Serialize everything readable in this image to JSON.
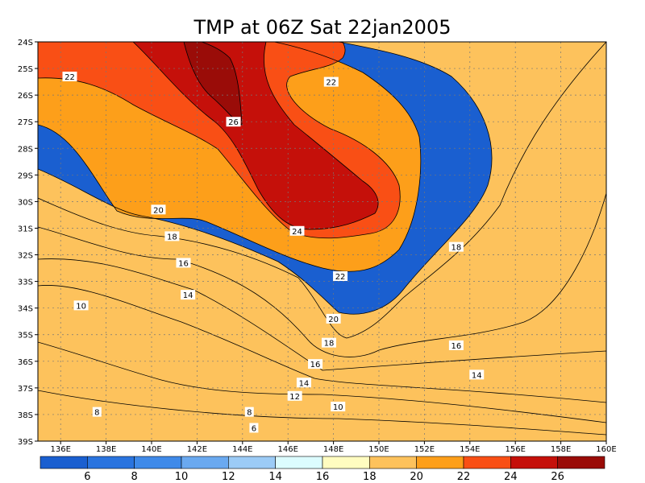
{
  "chart_data": {
    "type": "heatmap",
    "title": "TMP at 06Z Sat 22jan2005",
    "variable": "TMP",
    "time": "06Z Sat 22jan2005",
    "x_range": [
      135,
      160
    ],
    "y_range": [
      -39,
      -24
    ],
    "x_ticks": [
      {
        "value": 136,
        "label": "136E"
      },
      {
        "value": 138,
        "label": "138E"
      },
      {
        "value": 140,
        "label": "140E"
      },
      {
        "value": 142,
        "label": "142E"
      },
      {
        "value": 144,
        "label": "144E"
      },
      {
        "value": 146,
        "label": "146E"
      },
      {
        "value": 148,
        "label": "148E"
      },
      {
        "value": 150,
        "label": "150E"
      },
      {
        "value": 152,
        "label": "152E"
      },
      {
        "value": 154,
        "label": "154E"
      },
      {
        "value": 156,
        "label": "156E"
      },
      {
        "value": 158,
        "label": "158E"
      },
      {
        "value": 160,
        "label": "160E"
      }
    ],
    "y_ticks": [
      {
        "value": -24,
        "label": "24S"
      },
      {
        "value": -25,
        "label": "25S"
      },
      {
        "value": -26,
        "label": "26S"
      },
      {
        "value": -27,
        "label": "27S"
      },
      {
        "value": -28,
        "label": "28S"
      },
      {
        "value": -29,
        "label": "29S"
      },
      {
        "value": -30,
        "label": "30S"
      },
      {
        "value": -31,
        "label": "31S"
      },
      {
        "value": -32,
        "label": "32S"
      },
      {
        "value": -33,
        "label": "33S"
      },
      {
        "value": -34,
        "label": "34S"
      },
      {
        "value": -35,
        "label": "35S"
      },
      {
        "value": -36,
        "label": "36S"
      },
      {
        "value": -37,
        "label": "37S"
      },
      {
        "value": -38,
        "label": "38S"
      },
      {
        "value": -39,
        "label": "39S"
      }
    ],
    "grid": "dotted",
    "colorbar": {
      "position": "bottom",
      "ticks": [
        "6",
        "8",
        "10",
        "12",
        "14",
        "16",
        "18",
        "20",
        "22",
        "24",
        "26"
      ],
      "levels": [
        {
          "range": "<6",
          "color": "#1a5fd0"
        },
        {
          "range": "6-8",
          "color": "#2a74df"
        },
        {
          "range": "8-10",
          "color": "#3f8ae9"
        },
        {
          "range": "10-12",
          "color": "#6aa9f0"
        },
        {
          "range": "12-14",
          "color": "#9ccbf6"
        },
        {
          "range": "14-16",
          "color": "#dcfcfe"
        },
        {
          "range": "16-18",
          "color": "#fffcc0"
        },
        {
          "range": "18-20",
          "color": "#fdc25c"
        },
        {
          "range": "20-22",
          "color": "#fd9f1a"
        },
        {
          "range": "22-24",
          "color": "#f94f15"
        },
        {
          "range": "24-26",
          "color": "#c5100a"
        },
        {
          "range": ">26",
          "color": "#9a0c08"
        }
      ]
    },
    "contour_labels": [
      {
        "text": "22",
        "lon": 136.4,
        "lat": -25.3
      },
      {
        "text": "22",
        "lon": 147.9,
        "lat": -25.5
      },
      {
        "text": "26",
        "lon": 143.6,
        "lat": -27.0
      },
      {
        "text": "20",
        "lon": 140.3,
        "lat": -30.3
      },
      {
        "text": "18",
        "lon": 140.9,
        "lat": -31.3
      },
      {
        "text": "24",
        "lon": 146.4,
        "lat": -31.1
      },
      {
        "text": "16",
        "lon": 141.4,
        "lat": -32.3
      },
      {
        "text": "18",
        "lon": 153.4,
        "lat": -31.7
      },
      {
        "text": "22",
        "lon": 148.3,
        "lat": -32.8
      },
      {
        "text": "14",
        "lon": 141.6,
        "lat": -33.5
      },
      {
        "text": "10",
        "lon": 136.9,
        "lat": -33.9
      },
      {
        "text": "20",
        "lon": 148.0,
        "lat": -34.4
      },
      {
        "text": "18",
        "lon": 147.8,
        "lat": -35.3
      },
      {
        "text": "16",
        "lon": 153.4,
        "lat": -35.4
      },
      {
        "text": "16",
        "lon": 147.2,
        "lat": -36.1
      },
      {
        "text": "14",
        "lon": 154.3,
        "lat": -36.5
      },
      {
        "text": "14",
        "lon": 146.7,
        "lat": -36.8
      },
      {
        "text": "12",
        "lon": 146.3,
        "lat": -37.3
      },
      {
        "text": "10",
        "lon": 148.2,
        "lat": -37.7
      },
      {
        "text": "8",
        "lon": 137.6,
        "lat": -37.9
      },
      {
        "text": "8",
        "lon": 144.3,
        "lat": -37.9
      },
      {
        "text": "6",
        "lon": 144.5,
        "lat": -38.5
      }
    ]
  }
}
